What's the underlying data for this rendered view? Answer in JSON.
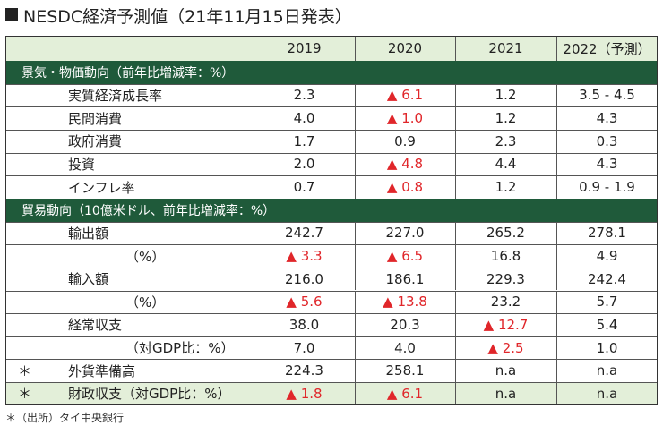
{
  "title": "NESDC経済予測値（21年11月15日発表）",
  "table": {
    "header": [
      "2019",
      "2020",
      "2021",
      "2022（予測）"
    ],
    "sections": [
      {
        "title": "景気・物価動向（前年比増減率：%）",
        "rows": [
          {
            "label": "実質経済成長率",
            "cells": [
              "2.3",
              "▲ 6.1",
              "1.2",
              "3.5 - 4.5"
            ]
          },
          {
            "label": "民間消費",
            "cells": [
              "4.0",
              "▲ 1.0",
              "1.2",
              "4.3"
            ]
          },
          {
            "label": "政府消費",
            "cells": [
              "1.7",
              "0.9",
              "2.3",
              "0.3"
            ]
          },
          {
            "label": "投資",
            "cells": [
              "2.0",
              "▲ 4.8",
              "4.4",
              "4.3"
            ]
          },
          {
            "label": "インフレ率",
            "cells": [
              "0.7",
              "▲ 0.8",
              "1.2",
              "0.9 - 1.9"
            ]
          }
        ]
      },
      {
        "title": "貿易動向（10億米ドル、前年比増減率：%）",
        "rows": [
          {
            "label": "輸出額",
            "cells": [
              "242.7",
              "227.0",
              "265.2",
              "278.1"
            ]
          },
          {
            "label": "（%）",
            "cells": [
              "▲ 3.3",
              "▲ 6.5",
              "16.8",
              "4.9"
            ]
          },
          {
            "label": "輸入額",
            "cells": [
              "216.0",
              "186.1",
              "229.3",
              "242.4"
            ]
          },
          {
            "label": "（%）",
            "cells": [
              "▲ 5.6",
              "▲ 13.8",
              "23.2",
              "5.7"
            ]
          },
          {
            "label": "経常収支",
            "cells": [
              "38.0",
              "20.3",
              "▲ 12.7",
              "5.4"
            ]
          },
          {
            "label": "（対GDP比：%）",
            "cells": [
              "7.0",
              "4.0",
              "▲ 2.5",
              "1.0"
            ]
          },
          {
            "mark": "＊",
            "label": "外貨準備高",
            "cells": [
              "224.3",
              "258.1",
              "n.a",
              "n.a"
            ]
          },
          {
            "mark": "＊",
            "label": "財政収支（対GDP比：%）",
            "cells": [
              "▲ 1.8",
              "▲ 6.1",
              "n.a",
              "n.a"
            ]
          }
        ]
      }
    ]
  },
  "footnote": "＊（出所）タイ中央銀行"
}
